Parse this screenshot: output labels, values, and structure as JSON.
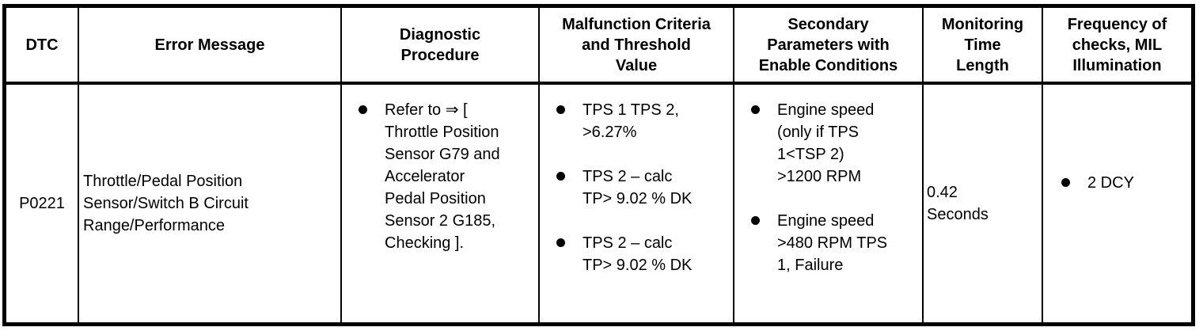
{
  "colors": {
    "border": "#000000",
    "text": "#000000",
    "background": "#ffffff"
  },
  "table": {
    "columns": [
      {
        "id": "dtc",
        "label": "DTC"
      },
      {
        "id": "error_message",
        "label": "Error Message"
      },
      {
        "id": "diagnostic_procedure",
        "label": "Diagnostic\nProcedure"
      },
      {
        "id": "malfunction_criteria",
        "label": "Malfunction Criteria\nand Threshold\nValue"
      },
      {
        "id": "secondary_parameters",
        "label": "Secondary\nParameters with\nEnable Conditions"
      },
      {
        "id": "monitoring_time",
        "label": "Monitoring\nTime\nLength"
      },
      {
        "id": "frequency",
        "label": "Frequency of\nchecks, MIL\nIllumination"
      }
    ],
    "row": {
      "dtc": "P0221",
      "error_message": "Throttle/Pedal Position\nSensor/Switch B Circuit\nRange/Performance",
      "diagnostic_procedure": [
        "Refer to ⇒ [\nThrottle Position\nSensor G79 and\nAccelerator\nPedal Position\nSensor 2 G185,\nChecking ]."
      ],
      "malfunction_criteria": [
        "TPS 1 TPS 2,\n>6.27%",
        "TPS 2 – calc\nTP> 9.02 % DK",
        "TPS 2 – calc\nTP> 9.02 % DK"
      ],
      "secondary_parameters": [
        "Engine speed\n(only if TPS\n1<TSP 2)\n>1200 RPM",
        "Engine speed\n>480 RPM TPS\n1, Failure"
      ],
      "monitoring_time": "0.42\nSeconds",
      "frequency": [
        "2 DCY"
      ]
    }
  }
}
